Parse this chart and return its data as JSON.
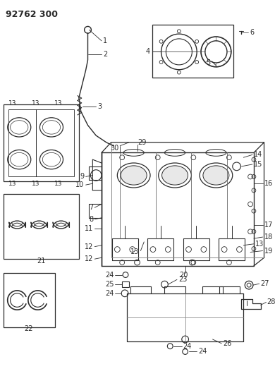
{
  "title": "92762 300",
  "bg_color": "#ffffff",
  "lc": "#2a2a2a",
  "fs": 7.0,
  "fs_title": 9.0,
  "fig_w": 3.9,
  "fig_h": 5.33,
  "dpi": 100
}
